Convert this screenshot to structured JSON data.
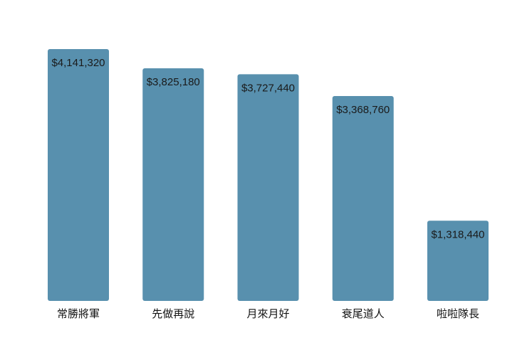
{
  "chart_data": {
    "type": "bar",
    "title": "",
    "xlabel": "",
    "ylabel": "",
    "categories": [
      "常勝將軍",
      "先做再說",
      "月來月好",
      "衰尾道人",
      "啦啦隊長"
    ],
    "values": [
      4141320,
      3825180,
      3727440,
      3368760,
      1318440
    ],
    "value_labels": [
      "$4,141,320",
      "$3,825,180",
      "$3,727,440",
      "$3,368,760",
      "$1,318,440"
    ],
    "ylim": [
      0,
      4141320
    ],
    "grid": false,
    "legend": "none",
    "bar_color": "#5890AE"
  }
}
